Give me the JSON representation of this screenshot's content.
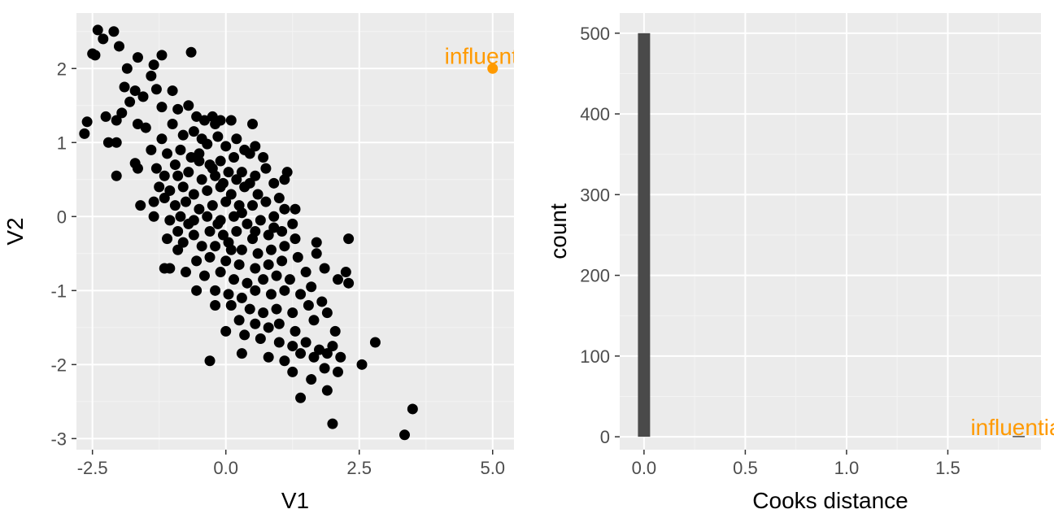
{
  "colors": {
    "panel_bg": "#ebebeb",
    "grid_major": "#ffffff",
    "grid_minor": "#f4f4f4",
    "point": "#000000",
    "highlight": "#ff9a00",
    "bar": "#4a4a4a",
    "tick_text": "#4d4d4d"
  },
  "chart_data": [
    {
      "type": "scatter",
      "xlabel": "V1",
      "ylabel": "V2",
      "xlim": [
        -2.8,
        5.4
      ],
      "ylim": [
        -3.15,
        2.75
      ],
      "xticks": [
        -2.5,
        0.0,
        2.5,
        5.0
      ],
      "xtick_labels": [
        "-2.5",
        "0.0",
        "2.5",
        "5.0"
      ],
      "yticks": [
        -3,
        -2,
        -1,
        0,
        1,
        2
      ],
      "ytick_labels": [
        "-3",
        "-2",
        "-1",
        "0",
        "1",
        "2"
      ],
      "grid": true,
      "points": [
        [
          -2.4,
          2.52
        ],
        [
          -2.1,
          2.5
        ],
        [
          -2.5,
          2.2
        ],
        [
          -2.3,
          2.4
        ],
        [
          -2.45,
          2.18
        ],
        [
          -1.65,
          2.15
        ],
        [
          -0.65,
          2.22
        ],
        [
          -2.0,
          2.3
        ],
        [
          -1.85,
          2.0
        ],
        [
          -1.35,
          2.05
        ],
        [
          -1.2,
          2.18
        ],
        [
          -1.4,
          1.9
        ],
        [
          -1.9,
          1.75
        ],
        [
          -1.7,
          1.7
        ],
        [
          -1.55,
          1.62
        ],
        [
          -1.8,
          1.55
        ],
        [
          -1.3,
          1.72
        ],
        [
          -1.0,
          1.7
        ],
        [
          -1.2,
          1.48
        ],
        [
          -2.6,
          1.28
        ],
        [
          -2.65,
          1.12
        ],
        [
          -2.25,
          1.35
        ],
        [
          -2.05,
          1.3
        ],
        [
          -1.65,
          1.25
        ],
        [
          -2.2,
          1.0
        ],
        [
          -2.05,
          1.0
        ],
        [
          -1.95,
          1.4
        ],
        [
          -0.9,
          1.45
        ],
        [
          -0.4,
          1.3
        ],
        [
          -0.2,
          1.25
        ],
        [
          -1.5,
          1.2
        ],
        [
          -1.2,
          1.05
        ],
        [
          -0.7,
          1.5
        ],
        [
          -0.55,
          1.35
        ],
        [
          -0.25,
          1.35
        ],
        [
          -0.1,
          1.3
        ],
        [
          0.1,
          1.3
        ],
        [
          -0.8,
          1.1
        ],
        [
          0.5,
          1.25
        ],
        [
          -1.0,
          1.25
        ],
        [
          -0.6,
          1.15
        ],
        [
          -0.45,
          1.05
        ],
        [
          -0.35,
          0.98
        ],
        [
          -0.15,
          1.08
        ],
        [
          0.0,
          0.95
        ],
        [
          0.2,
          1.05
        ],
        [
          0.35,
          0.9
        ],
        [
          0.55,
          0.95
        ],
        [
          -1.4,
          0.9
        ],
        [
          -1.1,
          0.85
        ],
        [
          -0.85,
          0.9
        ],
        [
          -0.65,
          0.8
        ],
        [
          -0.95,
          0.7
        ],
        [
          -0.5,
          0.75
        ],
        [
          -0.3,
          0.7
        ],
        [
          -0.1,
          0.75
        ],
        [
          0.15,
          0.8
        ],
        [
          0.45,
          0.85
        ],
        [
          0.7,
          0.8
        ],
        [
          -1.7,
          0.72
        ],
        [
          -1.65,
          0.65
        ],
        [
          -1.3,
          0.65
        ],
        [
          -1.15,
          0.55
        ],
        [
          -0.9,
          0.55
        ],
        [
          -0.7,
          0.6
        ],
        [
          -0.45,
          0.5
        ],
        [
          -0.2,
          0.55
        ],
        [
          0.05,
          0.6
        ],
        [
          0.3,
          0.6
        ],
        [
          0.55,
          0.55
        ],
        [
          -2.05,
          0.55
        ],
        [
          -1.25,
          0.4
        ],
        [
          -1.05,
          0.35
        ],
        [
          -0.8,
          0.4
        ],
        [
          -0.6,
          0.3
        ],
        [
          -0.35,
          0.35
        ],
        [
          -0.1,
          0.4
        ],
        [
          0.1,
          0.3
        ],
        [
          0.35,
          0.4
        ],
        [
          0.6,
          0.3
        ],
        [
          0.9,
          0.45
        ],
        [
          1.1,
          0.5
        ],
        [
          1.15,
          0.6
        ],
        [
          -1.15,
          0.25
        ],
        [
          -0.95,
          0.15
        ],
        [
          -0.75,
          0.2
        ],
        [
          -0.5,
          0.1
        ],
        [
          -0.25,
          0.15
        ],
        [
          0.0,
          0.2
        ],
        [
          0.25,
          0.15
        ],
        [
          0.5,
          0.15
        ],
        [
          0.75,
          0.2
        ],
        [
          1.0,
          0.25
        ],
        [
          1.3,
          0.1
        ],
        [
          -1.35,
          0.2
        ],
        [
          -1.6,
          0.15
        ],
        [
          -0.85,
          0.0
        ],
        [
          -0.6,
          -0.05
        ],
        [
          -0.35,
          0.0
        ],
        [
          -0.1,
          -0.05
        ],
        [
          0.15,
          0.0
        ],
        [
          0.4,
          -0.1
        ],
        [
          0.65,
          -0.05
        ],
        [
          0.9,
          0.0
        ],
        [
          1.1,
          0.1
        ],
        [
          -1.35,
          0.0
        ],
        [
          -1.05,
          -0.05
        ],
        [
          -0.9,
          -0.2
        ],
        [
          -0.6,
          -0.25
        ],
        [
          -0.3,
          -0.2
        ],
        [
          -0.05,
          -0.25
        ],
        [
          0.2,
          -0.2
        ],
        [
          0.5,
          -0.3
        ],
        [
          0.8,
          -0.25
        ],
        [
          1.05,
          -0.2
        ],
        [
          1.25,
          -0.1
        ],
        [
          -1.1,
          -0.3
        ],
        [
          -0.8,
          -0.35
        ],
        [
          -0.45,
          -0.4
        ],
        [
          -0.2,
          -0.4
        ],
        [
          0.05,
          -0.35
        ],
        [
          0.3,
          -0.45
        ],
        [
          0.6,
          -0.5
        ],
        [
          0.85,
          -0.45
        ],
        [
          1.1,
          -0.4
        ],
        [
          1.3,
          -0.3
        ],
        [
          -0.9,
          -0.45
        ],
        [
          -0.55,
          -0.6
        ],
        [
          -0.3,
          -0.55
        ],
        [
          0.0,
          -0.6
        ],
        [
          0.25,
          -0.65
        ],
        [
          0.55,
          -0.7
        ],
        [
          0.8,
          -0.65
        ],
        [
          1.05,
          -0.6
        ],
        [
          1.35,
          -0.55
        ],
        [
          1.7,
          -0.5
        ],
        [
          -1.05,
          -0.7
        ],
        [
          -0.75,
          -0.75
        ],
        [
          -0.4,
          -0.8
        ],
        [
          -0.1,
          -0.75
        ],
        [
          0.15,
          -0.85
        ],
        [
          0.4,
          -0.9
        ],
        [
          0.7,
          -0.85
        ],
        [
          0.95,
          -0.8
        ],
        [
          1.2,
          -0.85
        ],
        [
          1.5,
          -0.75
        ],
        [
          1.85,
          -0.7
        ],
        [
          -0.55,
          -1.0
        ],
        [
          -0.2,
          -1.0
        ],
        [
          0.05,
          -1.05
        ],
        [
          0.3,
          -1.1
        ],
        [
          0.55,
          -1.0
        ],
        [
          0.85,
          -1.05
        ],
        [
          1.1,
          -1.0
        ],
        [
          1.4,
          -1.05
        ],
        [
          1.6,
          -0.95
        ],
        [
          2.1,
          -0.85
        ],
        [
          2.25,
          -0.75
        ],
        [
          2.3,
          -0.9
        ],
        [
          -0.2,
          -1.2
        ],
        [
          0.1,
          -1.2
        ],
        [
          0.45,
          -1.25
        ],
        [
          0.7,
          -1.3
        ],
        [
          0.95,
          -1.25
        ],
        [
          1.25,
          -1.3
        ],
        [
          1.55,
          -1.2
        ],
        [
          1.8,
          -1.15
        ],
        [
          -1.15,
          -0.7
        ],
        [
          0.25,
          -1.4
        ],
        [
          0.55,
          -1.45
        ],
        [
          0.8,
          -1.5
        ],
        [
          1.0,
          -1.45
        ],
        [
          1.3,
          -1.55
        ],
        [
          1.65,
          -1.4
        ],
        [
          1.9,
          -1.3
        ],
        [
          2.3,
          -0.3
        ],
        [
          1.7,
          -0.35
        ],
        [
          0.0,
          -1.55
        ],
        [
          0.35,
          -1.6
        ],
        [
          0.65,
          -1.65
        ],
        [
          1.0,
          -1.7
        ],
        [
          1.25,
          -1.75
        ],
        [
          1.5,
          -1.7
        ],
        [
          1.75,
          -1.8
        ],
        [
          2.0,
          -1.75
        ],
        [
          2.05,
          -1.55
        ],
        [
          0.3,
          -1.85
        ],
        [
          0.8,
          -1.9
        ],
        [
          1.1,
          -1.95
        ],
        [
          1.4,
          -1.85
        ],
        [
          1.65,
          -1.9
        ],
        [
          1.9,
          -1.85
        ],
        [
          2.15,
          -1.9
        ],
        [
          -0.3,
          -1.95
        ],
        [
          1.25,
          -2.1
        ],
        [
          1.6,
          -2.2
        ],
        [
          1.85,
          -2.05
        ],
        [
          2.1,
          -2.1
        ],
        [
          1.9,
          -2.35
        ],
        [
          2.55,
          -2.0
        ],
        [
          2.8,
          -1.7
        ],
        [
          1.4,
          -2.45
        ],
        [
          2.0,
          -2.8
        ],
        [
          3.35,
          -2.95
        ],
        [
          3.5,
          -2.6
        ],
        [
          -0.5,
          0.85
        ],
        [
          -0.05,
          0.45
        ],
        [
          0.2,
          0.5
        ],
        [
          0.45,
          0.45
        ],
        [
          -0.15,
          -0.1
        ],
        [
          0.3,
          0.05
        ],
        [
          0.75,
          0.65
        ],
        [
          -0.7,
          -0.1
        ],
        [
          0.1,
          -0.45
        ],
        [
          0.55,
          -0.2
        ],
        [
          0.9,
          -0.15
        ],
        [
          -0.25,
          0.65
        ]
      ],
      "highlight_point": [
        5.0,
        2.0
      ],
      "annotation": "influential"
    },
    {
      "type": "bar",
      "xlabel": "Cooks distance",
      "ylabel": "count",
      "xlim": [
        -0.12,
        1.96
      ],
      "ylim": [
        -16,
        525
      ],
      "xticks": [
        0.0,
        0.5,
        1.0,
        1.5
      ],
      "xtick_labels": [
        "0.0",
        "0.5",
        "1.0",
        "1.5"
      ],
      "yticks": [
        0,
        100,
        200,
        300,
        400,
        500
      ],
      "ytick_labels": [
        "0",
        "100",
        "200",
        "300",
        "400",
        "500"
      ],
      "grid": true,
      "bins": [
        {
          "x0": -0.03,
          "x1": 0.03,
          "count": 500
        },
        {
          "x0": 1.82,
          "x1": 1.88,
          "count": 1
        }
      ],
      "annotation": "influential",
      "annotation_x": 1.85
    }
  ]
}
